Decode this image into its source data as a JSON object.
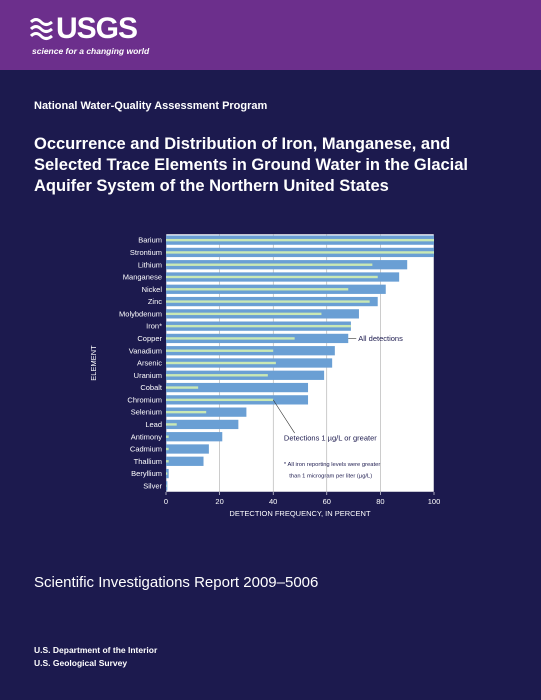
{
  "logo": {
    "wordmark": "USGS",
    "tagline": "science for a changing world"
  },
  "program": "National Water-Quality Assessment Program",
  "title": "Occurrence and Distribution of Iron, Manganese, and Selected Trace Elements in Ground Water in the Glacial Aquifer System of the Northern United States",
  "report": "Scientific Investigations Report 2009–5006",
  "agency": {
    "department": "U.S. Department of the Interior",
    "survey": "U.S. Geological Survey"
  },
  "colors": {
    "banner": "#6c2f8c",
    "background": "#1c1a4e",
    "plot": "#ffffff",
    "all_detections": "#6a9fd4",
    "detections_1ug": "#c9e8b4"
  },
  "chart_data": {
    "type": "bar",
    "orientation": "horizontal",
    "categories": [
      "Barium",
      "Strontium",
      "Lithium",
      "Manganese",
      "Nickel",
      "Zinc",
      "Molybdenum",
      "Iron*",
      "Copper",
      "Vanadium",
      "Arsenic",
      "Uranium",
      "Cobalt",
      "Chromium",
      "Selenium",
      "Lead",
      "Antimony",
      "Cadmium",
      "Thallium",
      "Beryllium",
      "Silver"
    ],
    "series": [
      {
        "name": "All detections",
        "values": [
          100,
          100,
          90,
          87,
          82,
          79,
          72,
          69,
          68,
          63,
          62,
          59,
          53,
          53,
          30,
          27,
          21,
          16,
          14,
          1,
          0.5
        ]
      },
      {
        "name": "Detections 1 µg/L or greater",
        "values": [
          100,
          100,
          77,
          79,
          68,
          76,
          58,
          69,
          48,
          40,
          41,
          38,
          12,
          40,
          15,
          4,
          1,
          1,
          1,
          0.5,
          0.2
        ]
      }
    ],
    "xlabel": "DETECTION FREQUENCY, IN PERCENT",
    "ylabel": "ELEMENT",
    "xlim": [
      0,
      100
    ],
    "xticks": [
      "0",
      "20",
      "40",
      "60",
      "80",
      "100"
    ],
    "annotations": {
      "all_detections": "All detections",
      "detections_1ug": "Detections 1 µg/L or greater",
      "footnote": "* All iron reporting levels were greater than 1 microgram per liter (µg/L)"
    },
    "grid": true
  }
}
